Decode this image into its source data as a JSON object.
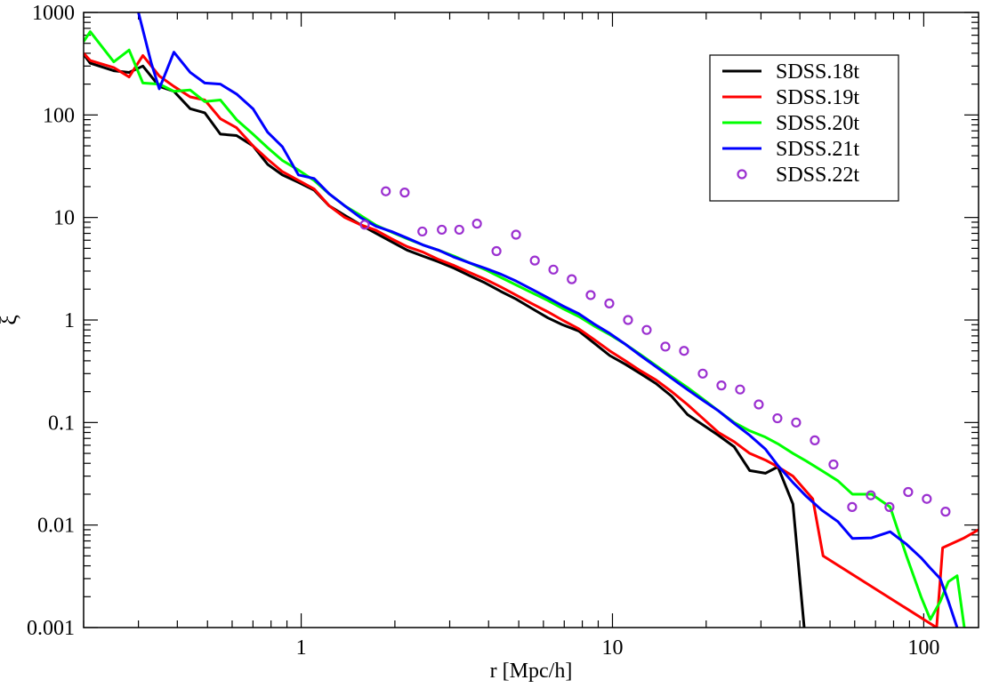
{
  "chart_data": {
    "type": "line",
    "title": "",
    "xlabel": "r [Mpc/h]",
    "ylabel": "ξ",
    "xscale": "log",
    "yscale": "log",
    "xlim": [
      0.2,
      150
    ],
    "ylim": [
      0.001,
      1000
    ],
    "x_ticks": [
      {
        "v": 1,
        "label": "1"
      },
      {
        "v": 10,
        "label": "10"
      },
      {
        "v": 100,
        "label": "100"
      }
    ],
    "y_ticks": [
      {
        "v": 0.001,
        "label": "0.001"
      },
      {
        "v": 0.01,
        "label": "0.01"
      },
      {
        "v": 0.1,
        "label": "0.1"
      },
      {
        "v": 1,
        "label": "1"
      },
      {
        "v": 10,
        "label": "10"
      },
      {
        "v": 100,
        "label": "100"
      },
      {
        "v": 1000,
        "label": "1000"
      }
    ],
    "legend_position": "top-right",
    "series": [
      {
        "name": "SDSS.18t",
        "color": "#000000",
        "style": "line",
        "x": [
          0.2,
          0.21,
          0.25,
          0.28,
          0.31,
          0.35,
          0.39,
          0.44,
          0.49,
          0.55,
          0.62,
          0.7,
          0.78,
          0.87,
          0.98,
          1.1,
          1.23,
          1.38,
          1.55,
          1.74,
          1.95,
          2.19,
          2.46,
          2.76,
          3.1,
          3.48,
          3.9,
          4.38,
          4.9,
          5.5,
          6.2,
          6.9,
          7.8,
          8.7,
          9.8,
          11,
          12.3,
          13.8,
          15.5,
          17.4,
          19.5,
          21.9,
          24.6,
          27.6,
          31,
          34,
          38,
          41.3
        ],
        "y": [
          390,
          320,
          270,
          260,
          300,
          190,
          170,
          115,
          105,
          65,
          63,
          50,
          33,
          26,
          22,
          18.5,
          13,
          10.5,
          8.5,
          7,
          5.8,
          4.8,
          4.2,
          3.7,
          3.2,
          2.7,
          2.3,
          1.9,
          1.6,
          1.3,
          1.05,
          0.9,
          0.78,
          0.6,
          0.45,
          0.37,
          0.3,
          0.24,
          0.18,
          0.12,
          0.095,
          0.075,
          0.058,
          0.034,
          0.032,
          0.037,
          0.016,
          0.001
        ]
      },
      {
        "name": "SDSS.19t",
        "color": "#ff0000",
        "style": "line",
        "x": [
          0.2,
          0.21,
          0.25,
          0.28,
          0.31,
          0.35,
          0.39,
          0.44,
          0.49,
          0.55,
          0.62,
          0.7,
          0.78,
          0.87,
          0.98,
          1.1,
          1.23,
          1.38,
          1.55,
          1.74,
          1.95,
          2.19,
          2.46,
          2.76,
          3.1,
          3.48,
          3.9,
          4.38,
          4.9,
          5.5,
          6.2,
          6.9,
          7.8,
          8.7,
          9.8,
          11,
          12.3,
          13.8,
          15.5,
          17.4,
          19.5,
          21.9,
          24.6,
          27.6,
          31,
          34,
          38,
          44,
          47.5,
          110,
          115,
          135,
          150
        ],
        "y": [
          400,
          340,
          290,
          235,
          380,
          240,
          190,
          150,
          140,
          92,
          75,
          50,
          37,
          28,
          23,
          19,
          13,
          10,
          8.5,
          7.5,
          6.2,
          5.2,
          4.6,
          3.9,
          3.4,
          2.9,
          2.5,
          2.1,
          1.75,
          1.45,
          1.2,
          1.0,
          0.82,
          0.65,
          0.5,
          0.4,
          0.32,
          0.26,
          0.2,
          0.15,
          0.11,
          0.08,
          0.065,
          0.05,
          0.043,
          0.037,
          0.03,
          0.018,
          0.005,
          0.001,
          0.006,
          0.0075,
          0.009
        ]
      },
      {
        "name": "SDSS.20t",
        "color": "#00ff00",
        "style": "line",
        "x": [
          0.2,
          0.21,
          0.25,
          0.28,
          0.31,
          0.35,
          0.39,
          0.44,
          0.49,
          0.55,
          0.62,
          0.7,
          0.78,
          0.87,
          0.98,
          1.1,
          1.23,
          1.38,
          1.55,
          1.74,
          1.95,
          2.19,
          2.46,
          2.76,
          3.1,
          3.48,
          3.9,
          4.38,
          4.9,
          5.5,
          6.2,
          6.9,
          7.8,
          8.7,
          9.8,
          11,
          12.3,
          13.8,
          15.5,
          17.4,
          19.5,
          21.9,
          24.6,
          27.6,
          31,
          34,
          38,
          42,
          47,
          53,
          59,
          68,
          78,
          88,
          98,
          105,
          113,
          120,
          128,
          135
        ],
        "y": [
          520,
          650,
          330,
          430,
          205,
          200,
          170,
          175,
          135,
          140,
          90,
          65,
          48,
          36,
          29,
          23,
          17,
          13,
          10.5,
          8.4,
          7.2,
          6.2,
          5.4,
          4.8,
          4.2,
          3.6,
          3.1,
          2.6,
          2.2,
          1.85,
          1.55,
          1.3,
          1.08,
          0.88,
          0.72,
          0.58,
          0.46,
          0.36,
          0.28,
          0.22,
          0.17,
          0.13,
          0.1,
          0.083,
          0.072,
          0.062,
          0.05,
          0.042,
          0.034,
          0.027,
          0.02,
          0.02,
          0.015,
          0.005,
          0.002,
          0.0012,
          0.0018,
          0.0028,
          0.0032,
          0.001
        ]
      },
      {
        "name": "SDSS.21t",
        "color": "#0000ff",
        "style": "line",
        "x": [
          0.3,
          0.33,
          0.35,
          0.39,
          0.44,
          0.49,
          0.55,
          0.62,
          0.7,
          0.78,
          0.87,
          0.98,
          1.1,
          1.23,
          1.38,
          1.55,
          1.74,
          1.95,
          2.19,
          2.46,
          2.76,
          3.1,
          3.48,
          3.9,
          4.38,
          4.9,
          5.5,
          6.2,
          6.9,
          7.8,
          8.7,
          9.8,
          11,
          12.3,
          13.8,
          15.5,
          17.4,
          19.5,
          21.9,
          24.6,
          27.6,
          31,
          34,
          38,
          42,
          47,
          53,
          59,
          68,
          78,
          88,
          98,
          105,
          113,
          120,
          128
        ],
        "y": [
          1000,
          320,
          180,
          410,
          260,
          205,
          200,
          160,
          115,
          68,
          49,
          26,
          24,
          17,
          13,
          10,
          8.2,
          7.3,
          6.3,
          5.4,
          4.8,
          4.1,
          3.6,
          3.2,
          2.8,
          2.4,
          2.0,
          1.65,
          1.38,
          1.15,
          0.92,
          0.74,
          0.58,
          0.45,
          0.35,
          0.27,
          0.21,
          0.165,
          0.13,
          0.098,
          0.075,
          0.055,
          0.038,
          0.026,
          0.019,
          0.014,
          0.0108,
          0.0074,
          0.0075,
          0.0086,
          0.0065,
          0.0048,
          0.0038,
          0.003,
          0.0018,
          0.001
        ]
      },
      {
        "name": "SDSS.22t",
        "color": "#9b30d0",
        "style": "markers",
        "x": [
          1.6,
          1.87,
          2.15,
          2.45,
          2.83,
          3.22,
          3.67,
          4.24,
          4.9,
          5.63,
          6.46,
          7.4,
          8.51,
          9.77,
          11.22,
          12.88,
          14.79,
          16.98,
          19.5,
          22.39,
          25.7,
          29.51,
          33.88,
          38.9,
          44.67,
          51.29,
          58.88,
          67.61,
          77.62,
          89.13,
          102.3,
          117.5
        ],
        "y": [
          8.5,
          18,
          17.5,
          7.3,
          7.6,
          7.6,
          8.7,
          4.7,
          6.8,
          3.8,
          3.1,
          2.5,
          1.75,
          1.45,
          1.0,
          0.8,
          0.55,
          0.5,
          0.3,
          0.23,
          0.21,
          0.15,
          0.11,
          0.1,
          0.067,
          0.039,
          0.015,
          0.0195,
          0.015,
          0.021,
          0.018,
          0.0135
        ]
      }
    ]
  }
}
